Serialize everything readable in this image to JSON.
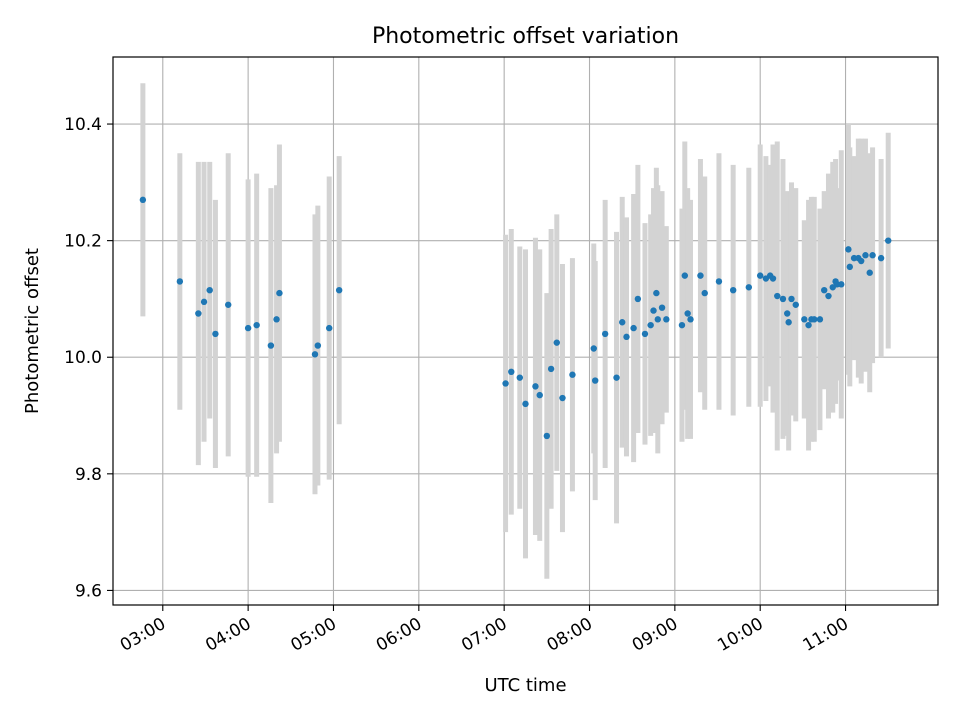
{
  "chart_data": {
    "type": "scatter",
    "title": "Photometric offset variation",
    "xlabel": "UTC time",
    "ylabel": "Photometric offset",
    "xlim": [
      "02:25",
      "12:05"
    ],
    "ylim": [
      9.575,
      10.515
    ],
    "grid": true,
    "x_ticks": [
      "03:00",
      "04:00",
      "05:00",
      "06:00",
      "07:00",
      "08:00",
      "09:00",
      "10:00",
      "11:00"
    ],
    "y_ticks": [
      "9.6",
      "9.8",
      "10.0",
      "10.2",
      "10.4"
    ],
    "colors": {
      "points": "#1f77b4",
      "errorbars": "#d3d3d3",
      "grid": "#b0b0b0"
    },
    "series": [
      {
        "x": [
          "02:46",
          "03:12",
          "03:25",
          "03:29",
          "03:33",
          "03:37",
          "03:46",
          "04:00",
          "04:06",
          "04:16",
          "04:20",
          "04:22",
          "04:47",
          "04:49",
          "04:57",
          "05:04",
          "07:01",
          "07:05",
          "07:11",
          "07:15",
          "07:22",
          "07:25",
          "07:30",
          "07:33",
          "07:37",
          "07:41",
          "07:48",
          "08:03",
          "08:04",
          "08:11",
          "08:19",
          "08:23",
          "08:26",
          "08:31",
          "08:34",
          "08:39",
          "08:43",
          "08:45",
          "08:47",
          "08:48",
          "08:51",
          "08:54",
          "09:05",
          "09:07",
          "09:09",
          "09:11",
          "09:18",
          "09:21",
          "09:31",
          "09:41",
          "09:52",
          "10:00",
          "10:04",
          "10:07",
          "10:09",
          "10:12",
          "10:16",
          "10:19",
          "10:20",
          "10:22",
          "10:25",
          "10:31",
          "10:34",
          "10:36",
          "10:38",
          "10:42",
          "10:45",
          "10:48",
          "10:51",
          "10:53",
          "10:54",
          "10:57",
          "11:02",
          "11:03",
          "11:06",
          "11:09",
          "11:11",
          "11:14",
          "11:17",
          "11:19",
          "11:25",
          "11:30"
        ],
        "y": [
          10.27,
          10.13,
          10.075,
          10.095,
          10.115,
          10.04,
          10.09,
          10.05,
          10.055,
          10.02,
          10.065,
          10.11,
          10.005,
          10.02,
          10.05,
          10.115,
          9.955,
          9.975,
          9.965,
          9.92,
          9.95,
          9.935,
          9.865,
          9.98,
          10.025,
          9.93,
          9.97,
          10.015,
          9.96,
          10.04,
          9.965,
          10.06,
          10.035,
          10.05,
          10.1,
          10.04,
          10.055,
          10.08,
          10.11,
          10.065,
          10.085,
          10.065,
          10.055,
          10.14,
          10.075,
          10.065,
          10.14,
          10.11,
          10.13,
          10.115,
          10.12,
          10.14,
          10.135,
          10.14,
          10.135,
          10.105,
          10.1,
          10.075,
          10.06,
          10.1,
          10.09,
          10.065,
          10.055,
          10.065,
          10.065,
          10.065,
          10.115,
          10.105,
          10.12,
          10.13,
          10.125,
          10.125,
          10.185,
          10.155,
          10.17,
          10.17,
          10.165,
          10.175,
          10.145,
          10.175,
          10.17,
          10.2
        ],
        "err": [
          0.2,
          0.22,
          0.26,
          0.24,
          0.22,
          0.23,
          0.26,
          0.255,
          0.26,
          0.27,
          0.23,
          0.255,
          0.24,
          0.24,
          0.26,
          0.23,
          0.255,
          0.245,
          0.225,
          0.265,
          0.255,
          0.25,
          0.245,
          0.24,
          0.22,
          0.23,
          0.2,
          0.18,
          0.205,
          0.23,
          0.25,
          0.215,
          0.205,
          0.23,
          0.23,
          0.19,
          0.19,
          0.21,
          0.215,
          0.23,
          0.2,
          0.16,
          0.2,
          0.23,
          0.215,
          0.205,
          0.2,
          0.2,
          0.22,
          0.215,
          0.205,
          0.225,
          0.21,
          0.19,
          0.23,
          0.265,
          0.24,
          0.21,
          0.22,
          0.2,
          0.2,
          0.17,
          0.215,
          0.21,
          0.21,
          0.19,
          0.17,
          0.21,
          0.215,
          0.21,
          0.165,
          0.23,
          0.215,
          0.205,
          0.175,
          0.205,
          0.21,
          0.2,
          0.205,
          0.185,
          0.17,
          0.185
        ]
      }
    ]
  }
}
